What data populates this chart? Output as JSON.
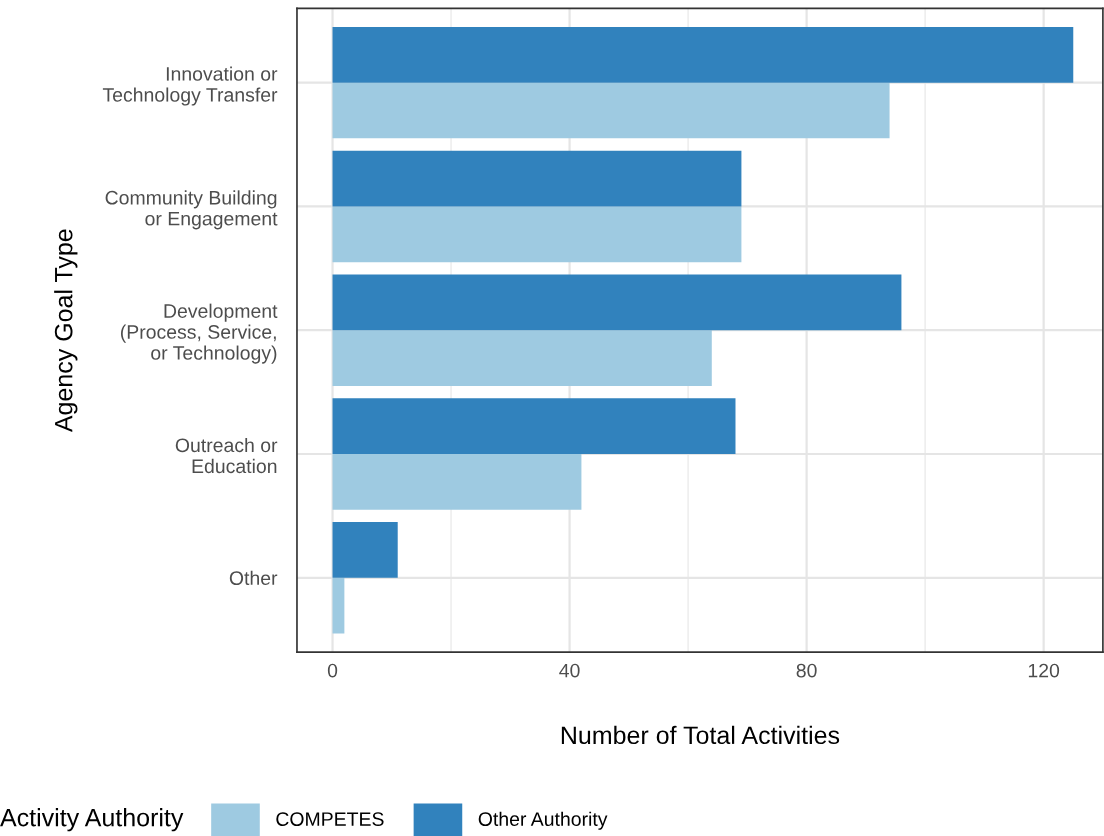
{
  "chart_data": {
    "type": "bar",
    "orientation": "horizontal",
    "xlabel": "Number of Total Activities",
    "ylabel": "Agency Goal Type",
    "legend_title": "Activity Authority",
    "categories": [
      "Innovation or\nTechnology Transfer",
      "Community Building\nor Engagement",
      "Development\n(Process, Service,\nor Technology)",
      "Outreach or\nEducation",
      "Other"
    ],
    "series": [
      {
        "name": "COMPETES",
        "color": "#9ecae1",
        "values": [
          94,
          69,
          64,
          42,
          2
        ]
      },
      {
        "name": "Other Authority",
        "color": "#3182bd",
        "values": [
          125,
          69,
          96,
          68,
          11
        ]
      }
    ],
    "xlim": [
      -6,
      130
    ],
    "xticks": [
      0,
      40,
      80,
      120
    ],
    "grid": true,
    "legend": "bottom"
  }
}
